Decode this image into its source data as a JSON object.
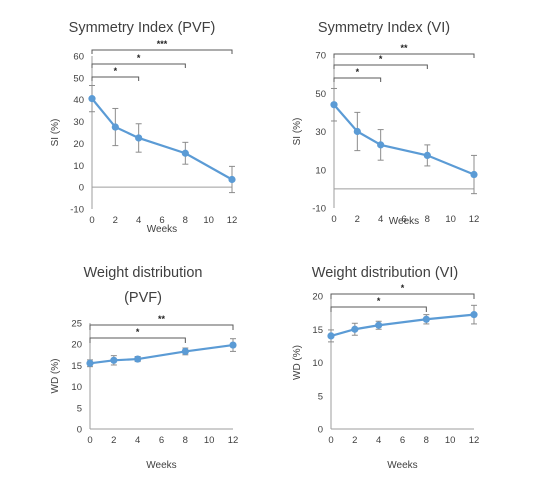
{
  "chart_data": [
    {
      "type": "line",
      "title": "Symmetry Index (PVF)",
      "xlabel": "Weeks",
      "ylabel": "SI (%)",
      "x": [
        0,
        2,
        4,
        8,
        12
      ],
      "xticks": [
        0,
        2,
        4,
        6,
        8,
        10,
        12
      ],
      "xlim": [
        0,
        12
      ],
      "ylim": [
        -10,
        60
      ],
      "yticks": [
        -10,
        0,
        10,
        20,
        30,
        40,
        50,
        60
      ],
      "series": [
        {
          "values": [
            40.5,
            27.5,
            22.5,
            15.5,
            3.5
          ],
          "error": [
            6.0,
            8.5,
            6.5,
            5.0,
            6.0
          ]
        }
      ],
      "significance": [
        {
          "from": 0,
          "to": 4,
          "label": "*"
        },
        {
          "from": 0,
          "to": 8,
          "label": "*"
        },
        {
          "from": 0,
          "to": 12,
          "label": "***"
        }
      ],
      "grid": false,
      "color": "#5b9bd5"
    },
    {
      "type": "line",
      "title": "Symmetry Index (VI)",
      "xlabel": "Weeks",
      "ylabel": "SI (%)",
      "x": [
        0,
        2,
        4,
        8,
        12
      ],
      "xticks": [
        0,
        2,
        4,
        6,
        8,
        10,
        12
      ],
      "xlim": [
        0,
        12
      ],
      "ylim": [
        -10,
        70
      ],
      "yticks": [
        -10,
        10,
        30,
        50,
        70
      ],
      "series": [
        {
          "values": [
            44.0,
            30.0,
            23.0,
            17.5,
            7.5
          ],
          "error": [
            8.5,
            10.0,
            8.0,
            5.5,
            10.0
          ]
        }
      ],
      "significance": [
        {
          "from": 0,
          "to": 4,
          "label": "*"
        },
        {
          "from": 0,
          "to": 8,
          "label": "*"
        },
        {
          "from": 0,
          "to": 12,
          "label": "**"
        }
      ],
      "grid": false,
      "color": "#5b9bd5"
    },
    {
      "type": "line",
      "title": "Weight distribution",
      "subtitle": "(PVF)",
      "xlabel": "Weeks",
      "ylabel": "WD (%)",
      "x": [
        0,
        2,
        4,
        8,
        12
      ],
      "xticks": [
        0,
        2,
        4,
        6,
        8,
        10,
        12
      ],
      "xlim": [
        0,
        12
      ],
      "ylim": [
        0,
        25
      ],
      "yticks": [
        0,
        5,
        10,
        15,
        20,
        25
      ],
      "series": [
        {
          "values": [
            15.5,
            16.2,
            16.5,
            18.3,
            19.8
          ],
          "error": [
            0.8,
            1.1,
            0.6,
            0.8,
            1.5
          ]
        }
      ],
      "significance": [
        {
          "from": 0,
          "to": 8,
          "label": "*"
        },
        {
          "from": 0,
          "to": 12,
          "label": "**"
        }
      ],
      "grid": false,
      "color": "#5b9bd5"
    },
    {
      "type": "line",
      "title": "Weight distribution (VI)",
      "xlabel": "Weeks",
      "ylabel": "WD (%)",
      "x": [
        0,
        2,
        4,
        8,
        12
      ],
      "xticks": [
        0,
        2,
        4,
        6,
        8,
        10,
        12
      ],
      "xlim": [
        0,
        12
      ],
      "ylim": [
        0,
        20
      ],
      "yticks": [
        0,
        5,
        10,
        15,
        20
      ],
      "series": [
        {
          "values": [
            14.0,
            15.0,
            15.6,
            16.5,
            17.2
          ],
          "error": [
            0.9,
            0.9,
            0.6,
            0.7,
            1.4
          ]
        }
      ],
      "significance": [
        {
          "from": 0,
          "to": 8,
          "label": "*"
        },
        {
          "from": 0,
          "to": 12,
          "label": "*"
        }
      ],
      "grid": false,
      "color": "#5b9bd5"
    }
  ]
}
